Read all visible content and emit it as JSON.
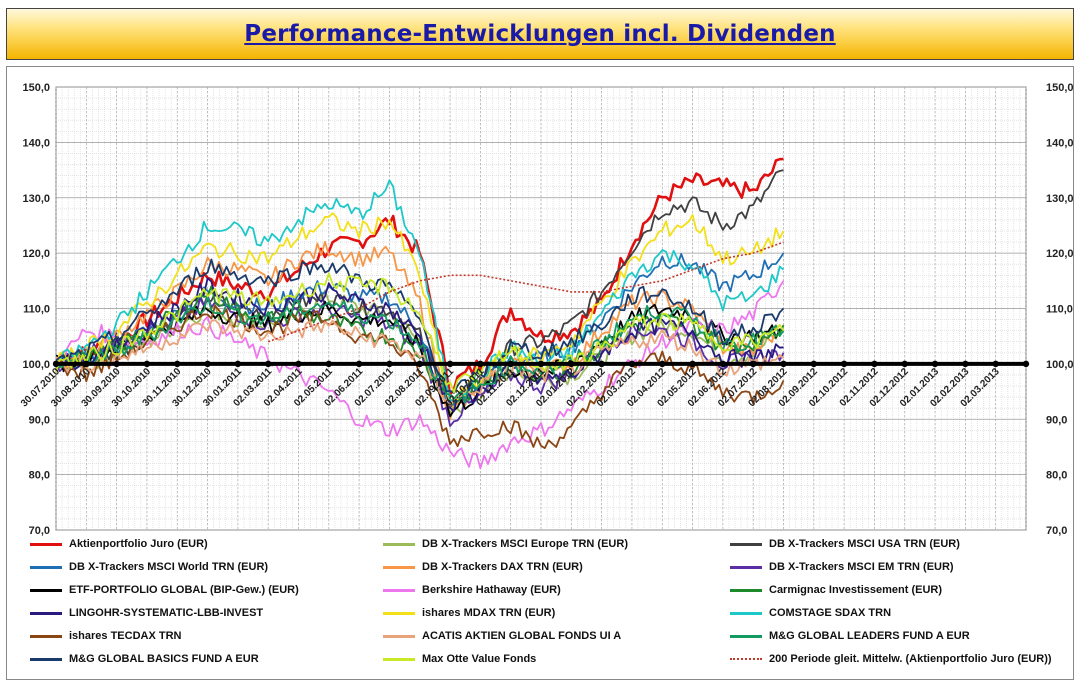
{
  "header": {
    "title": "Performance-Entwicklungen incl. Dividenden"
  },
  "chart_data": {
    "type": "line",
    "title": "Performance-Entwicklungen incl. Dividenden",
    "xlabel": "",
    "ylabel": "",
    "ylim": [
      70,
      150
    ],
    "y_ticks": [
      "70,0",
      "80,0",
      "90,0",
      "100,0",
      "110,0",
      "120,0",
      "130,0",
      "140,0",
      "150,0"
    ],
    "x_tick_labels": [
      "30.07.2010",
      "30.08.2010",
      "30.09.2010",
      "30.10.2010",
      "30.11.2010",
      "30.12.2010",
      "30.01.2011",
      "02.03.2011",
      "02.04.2011",
      "02.05.2011",
      "02.06.2011",
      "02.07.2011",
      "02.08.2011",
      "02.09.2011",
      "02.10.2011",
      "02.11.2011",
      "02.12.2011",
      "02.01.2012",
      "02.02.2012",
      "02.03.2012",
      "02.04.2012",
      "02.05.2012",
      "02.06.2012",
      "02.07.2012",
      "02.08.2012",
      "02.09.2012",
      "02.10.2012",
      "02.11.2012",
      "02.12.2012",
      "02.01.2013",
      "02.02.2013",
      "02.03.2013"
    ],
    "grid": true,
    "legend_position": "bottom",
    "baseline": {
      "value": 100
    },
    "series": [
      {
        "name": "Aktienportfolio Juro (EUR)",
        "color": "#e01010",
        "values": [
          100,
          102,
          104,
          108,
          112,
          116,
          114,
          113,
          117,
          121,
          122,
          126,
          120,
          96,
          100,
          110,
          105,
          106,
          111,
          122,
          130,
          133,
          132,
          131,
          137
        ]
      },
      {
        "name": "DB X-Trackers MSCI Europe TRN (EUR)",
        "color": "#9bbb59",
        "values": [
          100,
          100,
          102,
          104,
          107,
          110,
          108,
          107,
          110,
          112,
          110,
          109,
          104,
          91,
          95,
          99,
          97,
          98,
          101,
          105,
          107,
          106,
          101,
          102,
          106
        ]
      },
      {
        "name": "DB X-Trackers MSCI USA TRN (EUR)",
        "color": "#404040",
        "values": [
          100,
          101,
          102,
          105,
          108,
          112,
          110,
          109,
          111,
          112,
          110,
          110,
          105,
          92,
          97,
          103,
          104,
          107,
          113,
          121,
          128,
          129,
          125,
          128,
          135
        ]
      },
      {
        "name": "DB X-Trackers MSCI World TRN (EUR)",
        "color": "#1f6fb5",
        "values": [
          100,
          101,
          103,
          106,
          109,
          113,
          111,
          110,
          113,
          114,
          112,
          112,
          106,
          92,
          96,
          101,
          101,
          103,
          108,
          114,
          119,
          118,
          114,
          116,
          120
        ]
      },
      {
        "name": "DB X-Trackers DAX TRN (EUR)",
        "color": "#f79646",
        "values": [
          100,
          102,
          105,
          109,
          113,
          118,
          117,
          115,
          119,
          121,
          119,
          120,
          111,
          91,
          95,
          101,
          99,
          100,
          106,
          111,
          112,
          110,
          103,
          102,
          107
        ]
      },
      {
        "name": "DB X-Trackers  MSCI EM TRN (EUR)",
        "color": "#5b2ea6",
        "values": [
          100,
          102,
          104,
          106,
          108,
          111,
          109,
          107,
          109,
          110,
          108,
          107,
          103,
          90,
          94,
          98,
          96,
          98,
          103,
          106,
          106,
          104,
          100,
          101,
          102
        ]
      },
      {
        "name": "ETF-PORTFOLIO GLOBAL (BIP-Gew.) (EUR)",
        "color": "#000000",
        "values": [
          100,
          101,
          103,
          105,
          107,
          110,
          108,
          107,
          109,
          110,
          108,
          108,
          103,
          91,
          95,
          99,
          98,
          100,
          104,
          108,
          110,
          109,
          105,
          105,
          106
        ]
      },
      {
        "name": "Berkshire Hathaway (EUR)",
        "color": "#ee77ee",
        "values": [
          100,
          106,
          105,
          104,
          106,
          107,
          104,
          101,
          98,
          95,
          90,
          88,
          90,
          84,
          82,
          86,
          88,
          92,
          96,
          100,
          104,
          107,
          106,
          109,
          115
        ]
      },
      {
        "name": "Carmignac Investissement (EUR)",
        "color": "#1e8a2c",
        "values": [
          100,
          101,
          103,
          106,
          109,
          113,
          110,
          108,
          109,
          108,
          106,
          105,
          102,
          93,
          96,
          99,
          98,
          99,
          103,
          107,
          108,
          107,
          103,
          104,
          107
        ]
      },
      {
        "name": "LINGOHR-SYSTEMATIC-LBB-INVEST",
        "color": "#2a1a80",
        "values": [
          100,
          101,
          103,
          107,
          110,
          114,
          112,
          110,
          112,
          113,
          111,
          110,
          105,
          92,
          95,
          99,
          97,
          98,
          102,
          106,
          107,
          106,
          101,
          101,
          103
        ]
      },
      {
        "name": "ishares MDAX TRN (EUR)",
        "color": "#f2e01a",
        "values": [
          100,
          103,
          106,
          111,
          116,
          121,
          120,
          119,
          123,
          126,
          124,
          126,
          116,
          93,
          97,
          103,
          101,
          104,
          111,
          118,
          124,
          126,
          119,
          120,
          124
        ]
      },
      {
        "name": "COMSTAGE SDAX TRN",
        "color": "#1ec8c8",
        "values": [
          100,
          103,
          107,
          113,
          119,
          125,
          124,
          122,
          126,
          129,
          127,
          132,
          120,
          94,
          98,
          103,
          100,
          102,
          109,
          116,
          120,
          118,
          111,
          112,
          117
        ]
      },
      {
        "name": "ishares TECDAX TRN",
        "color": "#8b4513",
        "values": [
          100,
          98,
          101,
          104,
          107,
          110,
          108,
          106,
          108,
          108,
          105,
          104,
          99,
          86,
          88,
          89,
          85,
          88,
          95,
          100,
          101,
          99,
          95,
          94,
          97
        ]
      },
      {
        "name": "ACATIS AKTIEN GLOBAL FONDS UI A",
        "color": "#e8a37a",
        "values": [
          100,
          100,
          101,
          103,
          105,
          107,
          106,
          105,
          106,
          107,
          105,
          104,
          101,
          93,
          96,
          99,
          98,
          99,
          102,
          104,
          105,
          103,
          99,
          100,
          101
        ]
      },
      {
        "name": "M&G GLOBAL LEADERS FUND A EUR",
        "color": "#129a60",
        "values": [
          100,
          101,
          102,
          105,
          108,
          111,
          109,
          108,
          110,
          111,
          109,
          108,
          104,
          93,
          96,
          100,
          99,
          100,
          104,
          108,
          110,
          108,
          104,
          104,
          106
        ]
      },
      {
        "name": "M&G GLOBAL BASICS FUND A EUR",
        "color": "#1a3a6b",
        "values": [
          100,
          102,
          105,
          109,
          113,
          118,
          116,
          115,
          117,
          118,
          115,
          114,
          108,
          94,
          98,
          103,
          102,
          104,
          107,
          112,
          113,
          110,
          105,
          106,
          110
        ]
      },
      {
        "name": "Max Otte Value Fonds",
        "color": "#c9e825",
        "values": [
          100,
          101,
          103,
          106,
          109,
          113,
          112,
          111,
          113,
          115,
          114,
          114,
          109,
          96,
          98,
          102,
          100,
          100,
          103,
          107,
          108,
          107,
          104,
          104,
          106
        ]
      },
      {
        "name": "200 Periode gleit. Mittelw. (Aktienportfolio Juro (EUR))",
        "color": "#c0392b",
        "dotted": true,
        "values": [
          null,
          null,
          null,
          null,
          null,
          null,
          null,
          104,
          106,
          108,
          110,
          113,
          115,
          116,
          116,
          115,
          114,
          113,
          113,
          114,
          115,
          117,
          119,
          120,
          122
        ]
      }
    ]
  },
  "legend": {
    "items": [
      "Aktienportfolio Juro (EUR)",
      "DB X-Trackers MSCI Europe TRN (EUR)",
      "DB X-Trackers MSCI USA TRN (EUR)",
      "DB X-Trackers MSCI World TRN (EUR)",
      "DB X-Trackers DAX TRN (EUR)",
      "DB X-Trackers  MSCI EM TRN (EUR)",
      "ETF-PORTFOLIO GLOBAL (BIP-Gew.) (EUR)",
      "Berkshire Hathaway (EUR)",
      "Carmignac Investissement (EUR)",
      "LINGOHR-SYSTEMATIC-LBB-INVEST",
      "ishares MDAX TRN (EUR)",
      "COMSTAGE SDAX TRN",
      "ishares TECDAX TRN",
      "ACATIS AKTIEN GLOBAL FONDS UI A",
      "M&G GLOBAL LEADERS FUND A EUR",
      "M&G GLOBAL BASICS FUND A EUR",
      "Max Otte Value Fonds",
      "200 Periode gleit. Mittelw. (Aktienportfolio Juro (EUR))"
    ]
  }
}
